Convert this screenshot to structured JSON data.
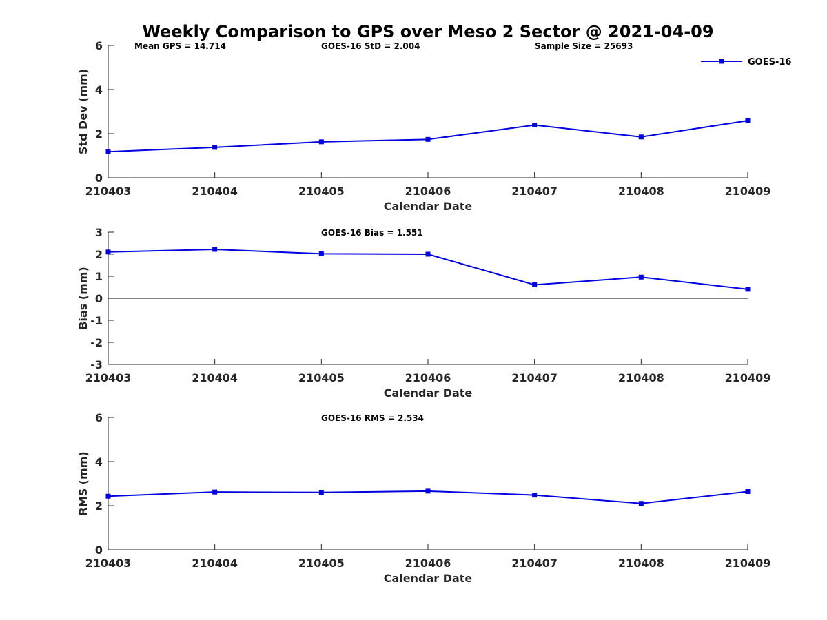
{
  "title": "Weekly Comparison to GPS over Meso 2 Sector @ 2021-04-09",
  "colors": {
    "series": "#0000e0",
    "axis": "#262626"
  },
  "legend": {
    "label": "GOES-16",
    "placement": "top-right"
  },
  "chart_data": [
    {
      "id": "std",
      "type": "line",
      "categories": [
        "210403",
        "210404",
        "210405",
        "210406",
        "210407",
        "210408",
        "210409"
      ],
      "series": [
        {
          "name": "GOES-16",
          "values": [
            1.18,
            1.38,
            1.63,
            1.74,
            2.39,
            1.85,
            2.59
          ]
        }
      ],
      "xlabel": "Calendar Date",
      "ylabel": "Std Dev (mm)",
      "ylim": [
        0,
        6
      ],
      "yticks": [
        "0",
        "2",
        "4",
        "6"
      ],
      "annotations": [
        "Mean GPS = 14.714",
        "GOES-16 StD = 2.004",
        "Sample Size = 25693"
      ],
      "zero_line": false
    },
    {
      "id": "bias",
      "type": "line",
      "categories": [
        "210403",
        "210404",
        "210405",
        "210406",
        "210407",
        "210408",
        "210409"
      ],
      "series": [
        {
          "name": "GOES-16",
          "values": [
            2.1,
            2.22,
            2.02,
            2.0,
            0.61,
            0.96,
            0.41
          ]
        }
      ],
      "xlabel": "Calendar Date",
      "ylabel": "Bias (mm)",
      "ylim": [
        -3,
        3
      ],
      "yticks": [
        "-3",
        "-2",
        "-1",
        "0",
        "1",
        "2",
        "3"
      ],
      "annotations": [
        "GOES-16 Bias  = 1.551"
      ],
      "zero_line": true
    },
    {
      "id": "rms",
      "type": "line",
      "categories": [
        "210403",
        "210404",
        "210405",
        "210406",
        "210407",
        "210408",
        "210409"
      ],
      "series": [
        {
          "name": "GOES-16",
          "values": [
            2.43,
            2.62,
            2.6,
            2.66,
            2.48,
            2.1,
            2.64
          ]
        }
      ],
      "xlabel": "Calendar Date",
      "ylabel": "RMS (mm)",
      "ylim": [
        0,
        6
      ],
      "yticks": [
        "0",
        "2",
        "4",
        "6"
      ],
      "annotations": [
        "GOES-16 RMS = 2.534"
      ],
      "zero_line": false
    }
  ]
}
